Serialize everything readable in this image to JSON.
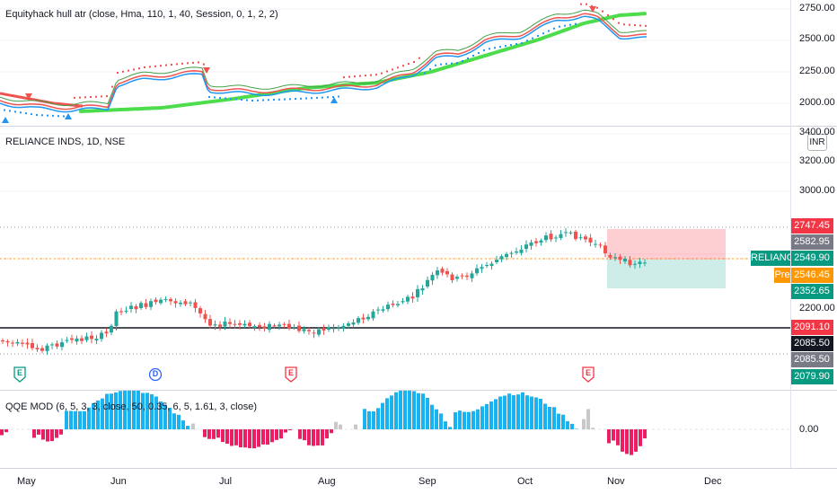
{
  "indicator1": {
    "title": "Equityhack hull atr (close, Hma, 110, 1, 40, Session, 0, 1, 2, 2)",
    "axis_labels": [
      "2750.00",
      "2500.00",
      "2250.00",
      "2000.00"
    ]
  },
  "main": {
    "title": "RELIANCE INDS, 1D, NSE",
    "currency": "INR",
    "axis_labels": [
      "3400.00",
      "3200.00",
      "3000.00",
      "2200.00"
    ],
    "price_tags": {
      "target": "2747.45",
      "high": "2582.95",
      "last": "2549.90",
      "pre": "2546.45",
      "stop": "2352.65",
      "hline1": "2091.10",
      "hline2": "2085.50",
      "hline3": "2085.50",
      "low": "2079.90"
    },
    "symbol_tag": "RELIANCE",
    "pre_tag": "Pre",
    "events": [
      {
        "letter": "E",
        "color": "#089981"
      },
      {
        "letter": "D",
        "color": "#2962ff"
      },
      {
        "letter": "E",
        "color": "#f23645"
      },
      {
        "letter": "E",
        "color": "#f23645"
      }
    ]
  },
  "indicator2": {
    "title": "QQE MOD (6, 5, 3, 3, close, 50, 0.35, 6, 5, 1.61, 3, close)",
    "axis_labels": [
      "0.00"
    ]
  },
  "time_axis": [
    "May",
    "Jun",
    "Jul",
    "Aug",
    "Sep",
    "Oct",
    "Nov",
    "Dec"
  ],
  "colors": {
    "up": "#26a69a",
    "down": "#ef5350",
    "hull_green": "#4cdc4c",
    "qqe_blue": "#1ab3f0",
    "qqe_pink": "#e91e63",
    "qqe_gray": "#c8c8c8"
  }
}
